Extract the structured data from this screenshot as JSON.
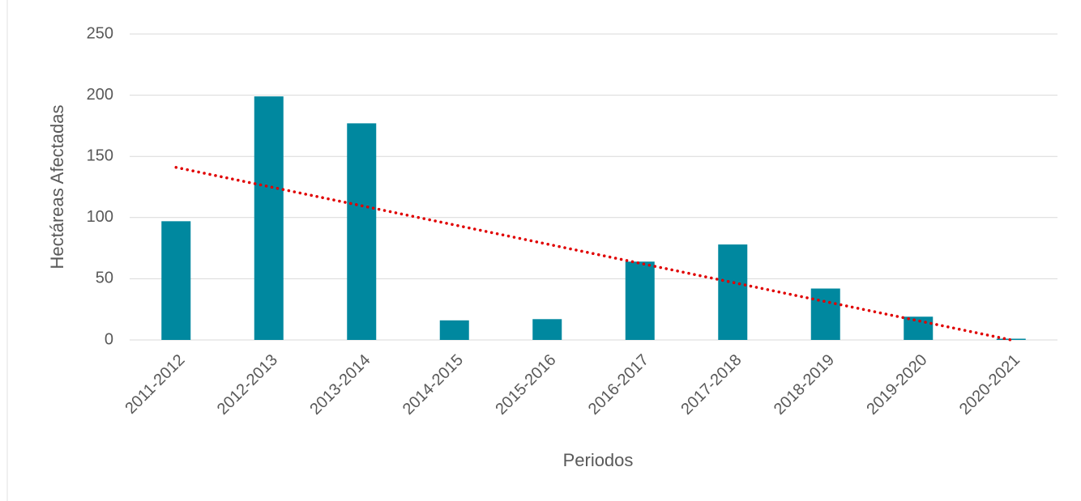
{
  "chart_data": {
    "type": "bar",
    "categories": [
      "2011-2012",
      "2012-2013",
      "2013-2014",
      "2014-2015",
      "2015-2016",
      "2016-2017",
      "2017-2018",
      "2018-2019",
      "2019-2020",
      "2020-2021"
    ],
    "values": [
      97,
      199,
      177,
      16,
      17,
      64,
      78,
      42,
      19,
      1
    ],
    "color": "#00889f",
    "trendline": {
      "values": [
        141,
        0
      ],
      "color": "#e00000"
    },
    "ylim": [
      0,
      250
    ],
    "yticks": [
      0,
      50,
      100,
      150,
      200,
      250
    ],
    "grid": true,
    "ylabel": "Hectáreas Afectadas",
    "xlabel": "Periodos"
  }
}
